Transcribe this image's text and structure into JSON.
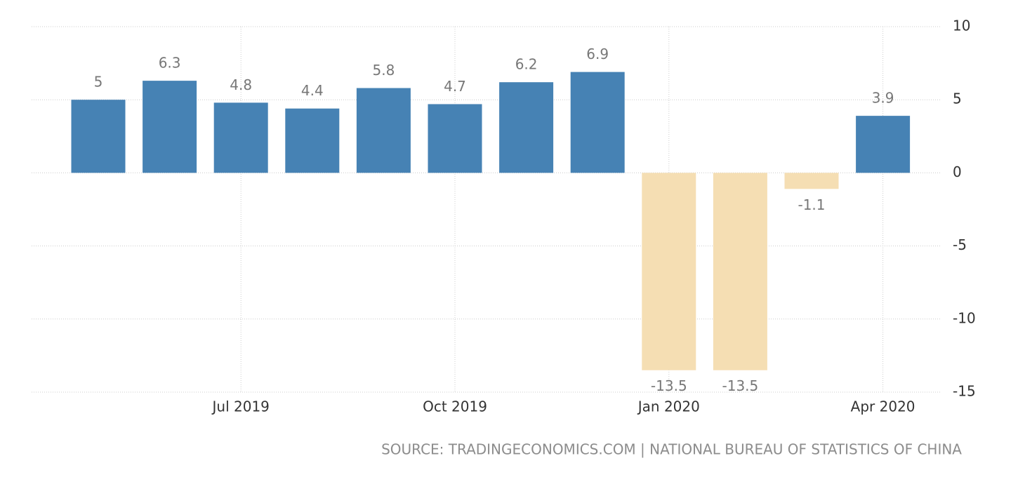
{
  "chart_data": {
    "type": "bar",
    "categories": [
      null,
      null,
      "Jul 2019",
      null,
      null,
      "Oct 2019",
      null,
      null,
      "Jan 2020",
      null,
      null,
      "Apr 2020"
    ],
    "values": [
      5,
      6.3,
      4.8,
      4.4,
      5.8,
      4.7,
      6.2,
      6.9,
      -13.5,
      -13.5,
      -1.1,
      3.9
    ],
    "color": "#4682b4",
    "negative_color": "#f5deb3",
    "ylim": [
      -15,
      10
    ],
    "yticks": [
      -15,
      -10,
      -5,
      0,
      5,
      10
    ],
    "grid": true,
    "source": "SOURCE: TRADINGECONOMICS.COM | NATIONAL BUREAU OF STATISTICS OF CHINA"
  }
}
